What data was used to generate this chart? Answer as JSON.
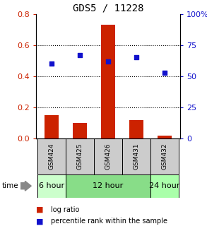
{
  "title": "GDS5 / 11228",
  "samples": [
    "GSM424",
    "GSM425",
    "GSM426",
    "GSM431",
    "GSM432"
  ],
  "log_ratio": [
    0.15,
    0.1,
    0.73,
    0.12,
    0.02
  ],
  "percentile_rank": [
    60,
    67,
    62,
    65,
    53
  ],
  "bar_color": "#cc2200",
  "dot_color": "#1111cc",
  "ylim_left": [
    0,
    0.8
  ],
  "ylim_right": [
    0,
    100
  ],
  "yticks_left": [
    0,
    0.2,
    0.4,
    0.6,
    0.8
  ],
  "yticks_right": [
    0,
    25,
    50,
    75,
    100
  ],
  "ytick_labels_right": [
    "0",
    "25",
    "50",
    "75",
    "100%"
  ],
  "groups": [
    {
      "label": "6 hour",
      "samples": [
        "GSM424"
      ],
      "color": "#ccffcc"
    },
    {
      "label": "12 hour",
      "samples": [
        "GSM425",
        "GSM426",
        "GSM431"
      ],
      "color": "#88dd88"
    },
    {
      "label": "24 hour",
      "samples": [
        "GSM432"
      ],
      "color": "#aaffaa"
    }
  ],
  "time_label": "time",
  "legend_entries": [
    "log ratio",
    "percentile rank within the sample"
  ],
  "legend_colors": [
    "#cc2200",
    "#1111cc"
  ],
  "sample_box_color": "#cccccc",
  "left_yaxis_color": "#cc2200",
  "right_yaxis_color": "#1111cc"
}
